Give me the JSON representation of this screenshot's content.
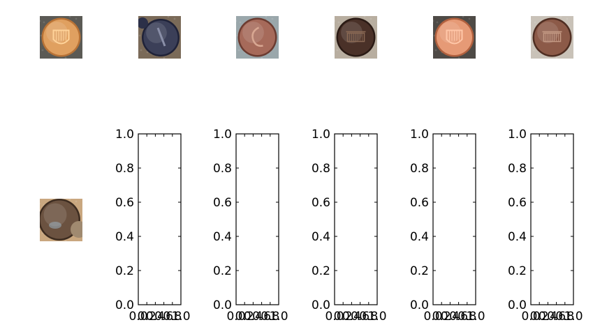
{
  "figure": {
    "background": "#ffffff",
    "top_row_thumbnails": [
      {
        "name": "coin-thumbnail-1",
        "desc": "copper penny, shield reverse, bright",
        "bg": "#5b5a55",
        "coin": "#e0a060",
        "rim": "#b77236",
        "detail": "#ffd39a",
        "kind": "shield"
      },
      {
        "name": "coin-thumbnail-2",
        "desc": "dark dime-like coin, tilted",
        "bg": "#7a6a58",
        "coin": "#3b3f58",
        "rim": "#1f2238",
        "detail": "#8a8fa8",
        "kind": "dime"
      },
      {
        "name": "coin-thumbnail-3",
        "desc": "penny on grey background",
        "bg": "#9aa7ab",
        "coin": "#a66a5a",
        "rim": "#6b3b30",
        "detail": "#d8a792",
        "kind": "profile"
      },
      {
        "name": "coin-thumbnail-4",
        "desc": "dark penny, memorial reverse",
        "bg": "#b8aea0",
        "coin": "#4a3128",
        "rim": "#2a1a14",
        "detail": "#8b6a55",
        "kind": "memorial"
      },
      {
        "name": "coin-thumbnail-5",
        "desc": "bright copper penny on carpet",
        "bg": "#4e4a46",
        "coin": "#e69a76",
        "rim": "#b0603e",
        "detail": "#ffc7a8",
        "kind": "shield"
      },
      {
        "name": "coin-thumbnail-6",
        "desc": "penny, memorial reverse",
        "bg": "#c9c2b8",
        "coin": "#8c5a48",
        "rim": "#4f2e22",
        "detail": "#c49a84",
        "kind": "memorial"
      }
    ],
    "left_thumbnail": {
      "name": "coin-thumbnail-7",
      "desc": "worn penny, partial",
      "bg": "#c9a77f",
      "coin": "#6b5240",
      "rim": "#3d2c20",
      "detail": "#9bb0c0",
      "kind": "worn"
    }
  },
  "chart_data": [
    {
      "type": "scatter",
      "series": [],
      "xlim": [
        0,
        1
      ],
      "ylim": [
        0,
        1
      ],
      "yticks": [
        0.0,
        0.2,
        0.4,
        0.6,
        0.8,
        1.0
      ],
      "ytick_labels": [
        "0.0",
        "0.2",
        "0.4",
        "0.6",
        "0.8",
        "1.0"
      ],
      "xticks": [
        0.0,
        0.2,
        0.4,
        0.6,
        0.8,
        1.0
      ],
      "xtick_labels": [
        "0.0",
        "0.2",
        "0.4",
        "0.6",
        "0.8",
        "1.0"
      ],
      "grid": false
    },
    {
      "type": "scatter",
      "series": [],
      "xlim": [
        0,
        1
      ],
      "ylim": [
        0,
        1
      ],
      "yticks": [
        0.0,
        0.2,
        0.4,
        0.6,
        0.8,
        1.0
      ],
      "ytick_labels": [
        "0.0",
        "0.2",
        "0.4",
        "0.6",
        "0.8",
        "1.0"
      ],
      "xticks": [
        0.0,
        0.2,
        0.4,
        0.6,
        0.8,
        1.0
      ],
      "xtick_labels": [
        "0.0",
        "0.2",
        "0.4",
        "0.6",
        "0.8",
        "1.0"
      ],
      "grid": false
    },
    {
      "type": "scatter",
      "series": [],
      "xlim": [
        0,
        1
      ],
      "ylim": [
        0,
        1
      ],
      "yticks": [
        0.0,
        0.2,
        0.4,
        0.6,
        0.8,
        1.0
      ],
      "ytick_labels": [
        "0.0",
        "0.2",
        "0.4",
        "0.6",
        "0.8",
        "1.0"
      ],
      "xticks": [
        0.0,
        0.2,
        0.4,
        0.6,
        0.8,
        1.0
      ],
      "xtick_labels": [
        "0.0",
        "0.2",
        "0.4",
        "0.6",
        "0.8",
        "1.0"
      ],
      "grid": false
    },
    {
      "type": "scatter",
      "series": [],
      "xlim": [
        0,
        1
      ],
      "ylim": [
        0,
        1
      ],
      "yticks": [
        0.0,
        0.2,
        0.4,
        0.6,
        0.8,
        1.0
      ],
      "ytick_labels": [
        "0.0",
        "0.2",
        "0.4",
        "0.6",
        "0.8",
        "1.0"
      ],
      "xticks": [
        0.0,
        0.2,
        0.4,
        0.6,
        0.8,
        1.0
      ],
      "xtick_labels": [
        "0.0",
        "0.2",
        "0.4",
        "0.6",
        "0.8",
        "1.0"
      ],
      "grid": false
    },
    {
      "type": "scatter",
      "series": [],
      "xlim": [
        0,
        1
      ],
      "ylim": [
        0,
        1
      ],
      "yticks": [
        0.0,
        0.2,
        0.4,
        0.6,
        0.8,
        1.0
      ],
      "ytick_labels": [
        "0.0",
        "0.2",
        "0.4",
        "0.6",
        "0.8",
        "1.0"
      ],
      "xticks": [
        0.0,
        0.2,
        0.4,
        0.6,
        0.8,
        1.0
      ],
      "xtick_labels": [
        "0.0",
        "0.2",
        "0.4",
        "0.6",
        "0.8",
        "1.0"
      ],
      "grid": false
    }
  ]
}
